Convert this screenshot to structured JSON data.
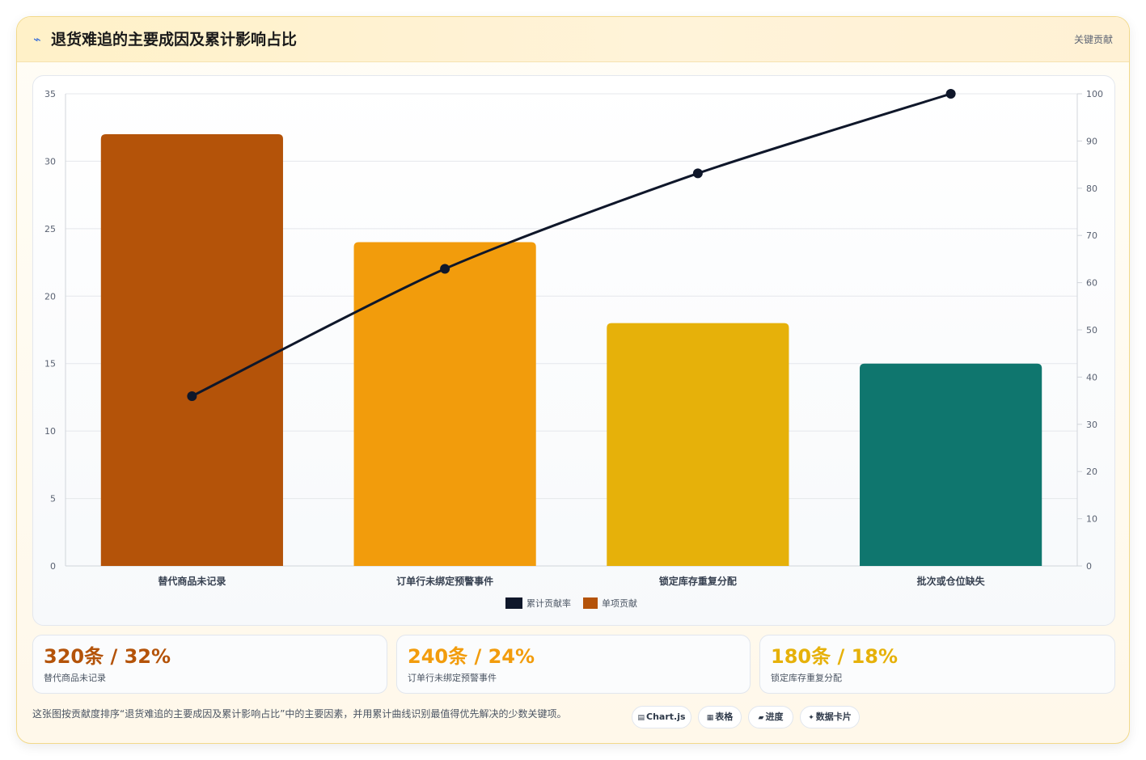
{
  "header": {
    "title": "退货难追的主要成因及累计影响占比",
    "tag": "关键贡献"
  },
  "chart_data": {
    "type": "bar",
    "categories": [
      "替代商品未记录",
      "订单行未绑定预警事件",
      "锁定库存重复分配",
      "批次或仓位缺失"
    ],
    "series": [
      {
        "name": "单项贡献",
        "type": "bar",
        "axis": "left",
        "values": [
          32,
          24,
          18,
          15
        ],
        "colors": [
          "#b45309",
          "#f29c0c",
          "#e6b10a",
          "#0f766e"
        ]
      },
      {
        "name": "累计贡献率",
        "type": "line",
        "axis": "right",
        "values": [
          35.96,
          62.92,
          83.15,
          100
        ],
        "color": "#0f172a"
      }
    ],
    "ylim": [
      0,
      35
    ],
    "yticks": [
      0,
      5,
      10,
      15,
      20,
      25,
      30,
      35
    ],
    "y2lim": [
      0,
      100
    ],
    "y2ticks": [
      0,
      10,
      20,
      30,
      40,
      50,
      60,
      70,
      80,
      90,
      100
    ],
    "grid": true,
    "legend": {
      "placement": "bottom",
      "items": [
        {
          "label": "累计贡献率",
          "color": "#0f172a"
        },
        {
          "label": "单项贡献",
          "color": "#b45309"
        }
      ]
    }
  },
  "stats": [
    {
      "value": "320条 / 32%",
      "label": "替代商品未记录",
      "color": "#b45309"
    },
    {
      "value": "240条 / 24%",
      "label": "订单行未绑定预警事件",
      "color": "#f29c0c"
    },
    {
      "value": "180条 / 18%",
      "label": "锁定库存重复分配",
      "color": "#e6b10a"
    }
  ],
  "footer": {
    "note": "这张图按贡献度排序“退货难追的主要成因及累计影响占比”中的主要因素，并用累计曲线识别最值得优先解决的少数关键项。",
    "chips": [
      {
        "icon": "▤",
        "label": "Chart.js"
      },
      {
        "icon": "▦",
        "label": "表格"
      },
      {
        "icon": "▰",
        "label": "进度"
      },
      {
        "icon": "✦",
        "label": "数据卡片"
      }
    ]
  }
}
